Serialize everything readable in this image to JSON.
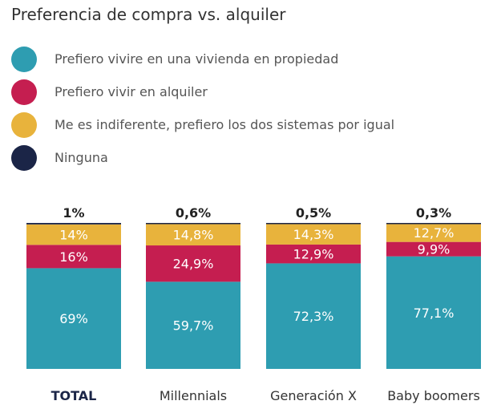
{
  "colors": {
    "propiedad": "#2e9db1",
    "alquiler": "#c51e50",
    "indiferente": "#e8b33c",
    "ninguna": "#1b2547"
  },
  "chart_data": {
    "type": "bar",
    "stacked": true,
    "title": "Preferencia de compra vs. alquiler",
    "legend_position": "top-left",
    "categories": [
      "TOTAL",
      "Millennials",
      "Generación X",
      "Baby boomers"
    ],
    "series": [
      {
        "name": "Prefiero vivire en una vivienda en propiedad",
        "color_key": "propiedad",
        "values": [
          69,
          59.7,
          72.3,
          77.1
        ],
        "labels": [
          "69%",
          "59,7%",
          "72,3%",
          "77,1%"
        ]
      },
      {
        "name": "Prefiero vivir en alquiler",
        "color_key": "alquiler",
        "values": [
          16,
          24.9,
          12.9,
          9.9
        ],
        "labels": [
          "16%",
          "24,9%",
          "12,9%",
          "9,9%"
        ]
      },
      {
        "name": "Me es indiferente, prefiero los dos sistemas por igual",
        "color_key": "indiferente",
        "values": [
          14,
          14.8,
          14.3,
          12.7
        ],
        "labels": [
          "14%",
          "14,8%",
          "14,3%",
          "12,7%"
        ]
      },
      {
        "name": "Ninguna",
        "color_key": "ninguna",
        "values": [
          1,
          0.6,
          0.5,
          0.3
        ],
        "labels": [
          "1%",
          "0,6%",
          "0,5%",
          "0,3%"
        ]
      }
    ]
  }
}
